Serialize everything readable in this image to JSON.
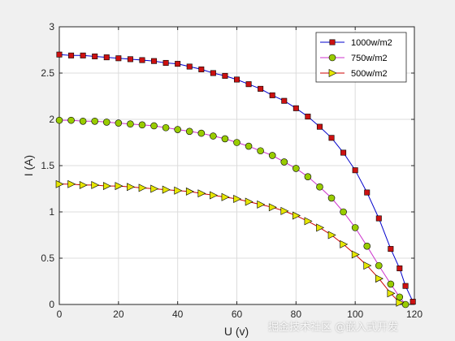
{
  "chart_data": {
    "type": "line",
    "title": "",
    "xlabel": "U (v)",
    "ylabel": "I (A)",
    "xlim": [
      0,
      120
    ],
    "ylim": [
      0,
      3
    ],
    "xticks": [
      "0",
      "20",
      "40",
      "60",
      "80",
      "100",
      "120"
    ],
    "yticks": [
      "0",
      "0.5",
      "1",
      "1.5",
      "2",
      "2.5",
      "3"
    ],
    "grid": true,
    "legend_position": "top-right",
    "series": [
      {
        "name": "1000w/m2",
        "color": "#0000cc",
        "marker": "square",
        "marker_color": "#cc1111",
        "x": [
          0,
          4,
          8,
          12,
          16,
          20,
          24,
          28,
          32,
          36,
          40,
          44,
          48,
          52,
          56,
          60,
          64,
          68,
          72,
          76,
          80,
          84,
          88,
          92,
          96,
          100,
          104,
          108,
          112,
          115,
          117,
          119.5
        ],
        "y": [
          2.7,
          2.69,
          2.69,
          2.68,
          2.67,
          2.66,
          2.65,
          2.64,
          2.63,
          2.61,
          2.6,
          2.57,
          2.54,
          2.5,
          2.47,
          2.43,
          2.38,
          2.33,
          2.26,
          2.2,
          2.12,
          2.03,
          1.92,
          1.8,
          1.64,
          1.45,
          1.21,
          0.93,
          0.6,
          0.39,
          0.2,
          0.03
        ]
      },
      {
        "name": "750w/m2",
        "color": "#cc33cc",
        "marker": "circle",
        "marker_color": "#99cc00",
        "x": [
          0,
          4,
          8,
          12,
          16,
          20,
          24,
          28,
          32,
          36,
          40,
          44,
          48,
          52,
          56,
          60,
          64,
          68,
          72,
          76,
          80,
          84,
          88,
          92,
          96,
          100,
          104,
          108,
          112,
          115,
          117
        ],
        "y": [
          1.99,
          1.99,
          1.98,
          1.98,
          1.97,
          1.96,
          1.95,
          1.94,
          1.93,
          1.91,
          1.89,
          1.87,
          1.85,
          1.82,
          1.79,
          1.75,
          1.71,
          1.66,
          1.61,
          1.54,
          1.47,
          1.38,
          1.27,
          1.15,
          1.0,
          0.83,
          0.63,
          0.42,
          0.22,
          0.08,
          0.0
        ]
      },
      {
        "name": "500w/m2",
        "color": "#cc0000",
        "marker": "triangle-right",
        "marker_color": "#e6e600",
        "x": [
          0,
          4,
          8,
          12,
          16,
          20,
          24,
          28,
          32,
          36,
          40,
          44,
          48,
          52,
          56,
          60,
          64,
          68,
          72,
          76,
          80,
          84,
          88,
          92,
          96,
          100,
          104,
          108,
          112,
          115
        ],
        "y": [
          1.3,
          1.3,
          1.29,
          1.29,
          1.28,
          1.28,
          1.27,
          1.26,
          1.25,
          1.24,
          1.23,
          1.22,
          1.2,
          1.18,
          1.16,
          1.14,
          1.11,
          1.08,
          1.05,
          1.01,
          0.96,
          0.9,
          0.83,
          0.75,
          0.65,
          0.54,
          0.42,
          0.28,
          0.12,
          0.02
        ]
      }
    ]
  },
  "watermark": "掘金技术社区 @嵌入式开发"
}
